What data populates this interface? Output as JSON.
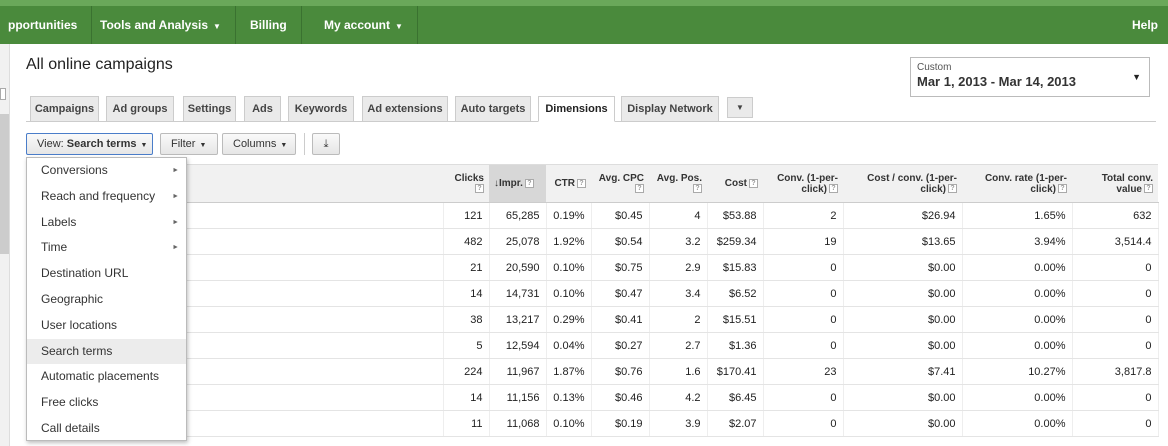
{
  "topnav": {
    "items": [
      {
        "label": "pportunities",
        "caret": ""
      },
      {
        "label": "Tools and Analysis",
        "caret": "▼"
      },
      {
        "label": "Billing",
        "caret": ""
      },
      {
        "label": "My account",
        "caret": "▼"
      }
    ],
    "help": "Help"
  },
  "page": {
    "title": "All online campaigns"
  },
  "daterange": {
    "label": "Custom",
    "value": "Mar 1, 2013 - Mar 14, 2013",
    "caret": "▼"
  },
  "tabs": [
    "Campaigns",
    "Ad groups",
    "Settings",
    "Ads",
    "Keywords",
    "Ad extensions",
    "Auto targets",
    "Dimensions",
    "Display Network"
  ],
  "tabs_more": "▼",
  "toolbar": {
    "view_prefix": "View:",
    "view_value": "Search terms",
    "filter": "Filter",
    "columns": "Columns",
    "download": "⤓",
    "caret": "▼"
  },
  "menu": {
    "items": [
      {
        "label": "Conversions",
        "submenu": true
      },
      {
        "label": "Reach and frequency",
        "submenu": true
      },
      {
        "label": "Labels",
        "submenu": true
      },
      {
        "label": "Time",
        "submenu": true
      },
      {
        "label": "Destination URL",
        "submenu": false
      },
      {
        "label": "Geographic",
        "submenu": false
      },
      {
        "label": "User locations",
        "submenu": false
      },
      {
        "label": "Search terms",
        "submenu": false,
        "highlighted": true
      },
      {
        "label": "Automatic placements",
        "submenu": false
      },
      {
        "label": "Free clicks",
        "submenu": false
      },
      {
        "label": "Call details",
        "submenu": false
      }
    ],
    "arrow": "►"
  },
  "table": {
    "help_glyph": "?",
    "sort_glyph": "↓",
    "columns": [
      "Clicks",
      "Impr.",
      "CTR",
      "Avg. CPC",
      "Avg. Pos.",
      "Cost",
      "Conv. (1-per-click)",
      "Cost / conv. (1-per-click)",
      "Conv. rate (1-per-click)",
      "Total conv. value"
    ],
    "rows": [
      [
        "121",
        "65,285",
        "0.19%",
        "$0.45",
        "4",
        "$53.88",
        "2",
        "$26.94",
        "1.65%",
        "632"
      ],
      [
        "482",
        "25,078",
        "1.92%",
        "$0.54",
        "3.2",
        "$259.34",
        "19",
        "$13.65",
        "3.94%",
        "3,514.4"
      ],
      [
        "21",
        "20,590",
        "0.10%",
        "$0.75",
        "2.9",
        "$15.83",
        "0",
        "$0.00",
        "0.00%",
        "0"
      ],
      [
        "14",
        "14,731",
        "0.10%",
        "$0.47",
        "3.4",
        "$6.52",
        "0",
        "$0.00",
        "0.00%",
        "0"
      ],
      [
        "38",
        "13,217",
        "0.29%",
        "$0.41",
        "2",
        "$15.51",
        "0",
        "$0.00",
        "0.00%",
        "0"
      ],
      [
        "5",
        "12,594",
        "0.04%",
        "$0.27",
        "2.7",
        "$1.36",
        "0",
        "$0.00",
        "0.00%",
        "0"
      ],
      [
        "224",
        "11,967",
        "1.87%",
        "$0.76",
        "1.6",
        "$170.41",
        "23",
        "$7.41",
        "10.27%",
        "3,817.8"
      ],
      [
        "14",
        "11,156",
        "0.13%",
        "$0.46",
        "4.2",
        "$6.45",
        "0",
        "$0.00",
        "0.00%",
        "0"
      ],
      [
        "11",
        "11,068",
        "0.10%",
        "$0.19",
        "3.9",
        "$2.07",
        "0",
        "$0.00",
        "0.00%",
        "0"
      ]
    ]
  },
  "colors": {
    "nav": "#4a8a3c",
    "active_tab": "#ffffff",
    "sorted_header": "#d7d7d7"
  }
}
